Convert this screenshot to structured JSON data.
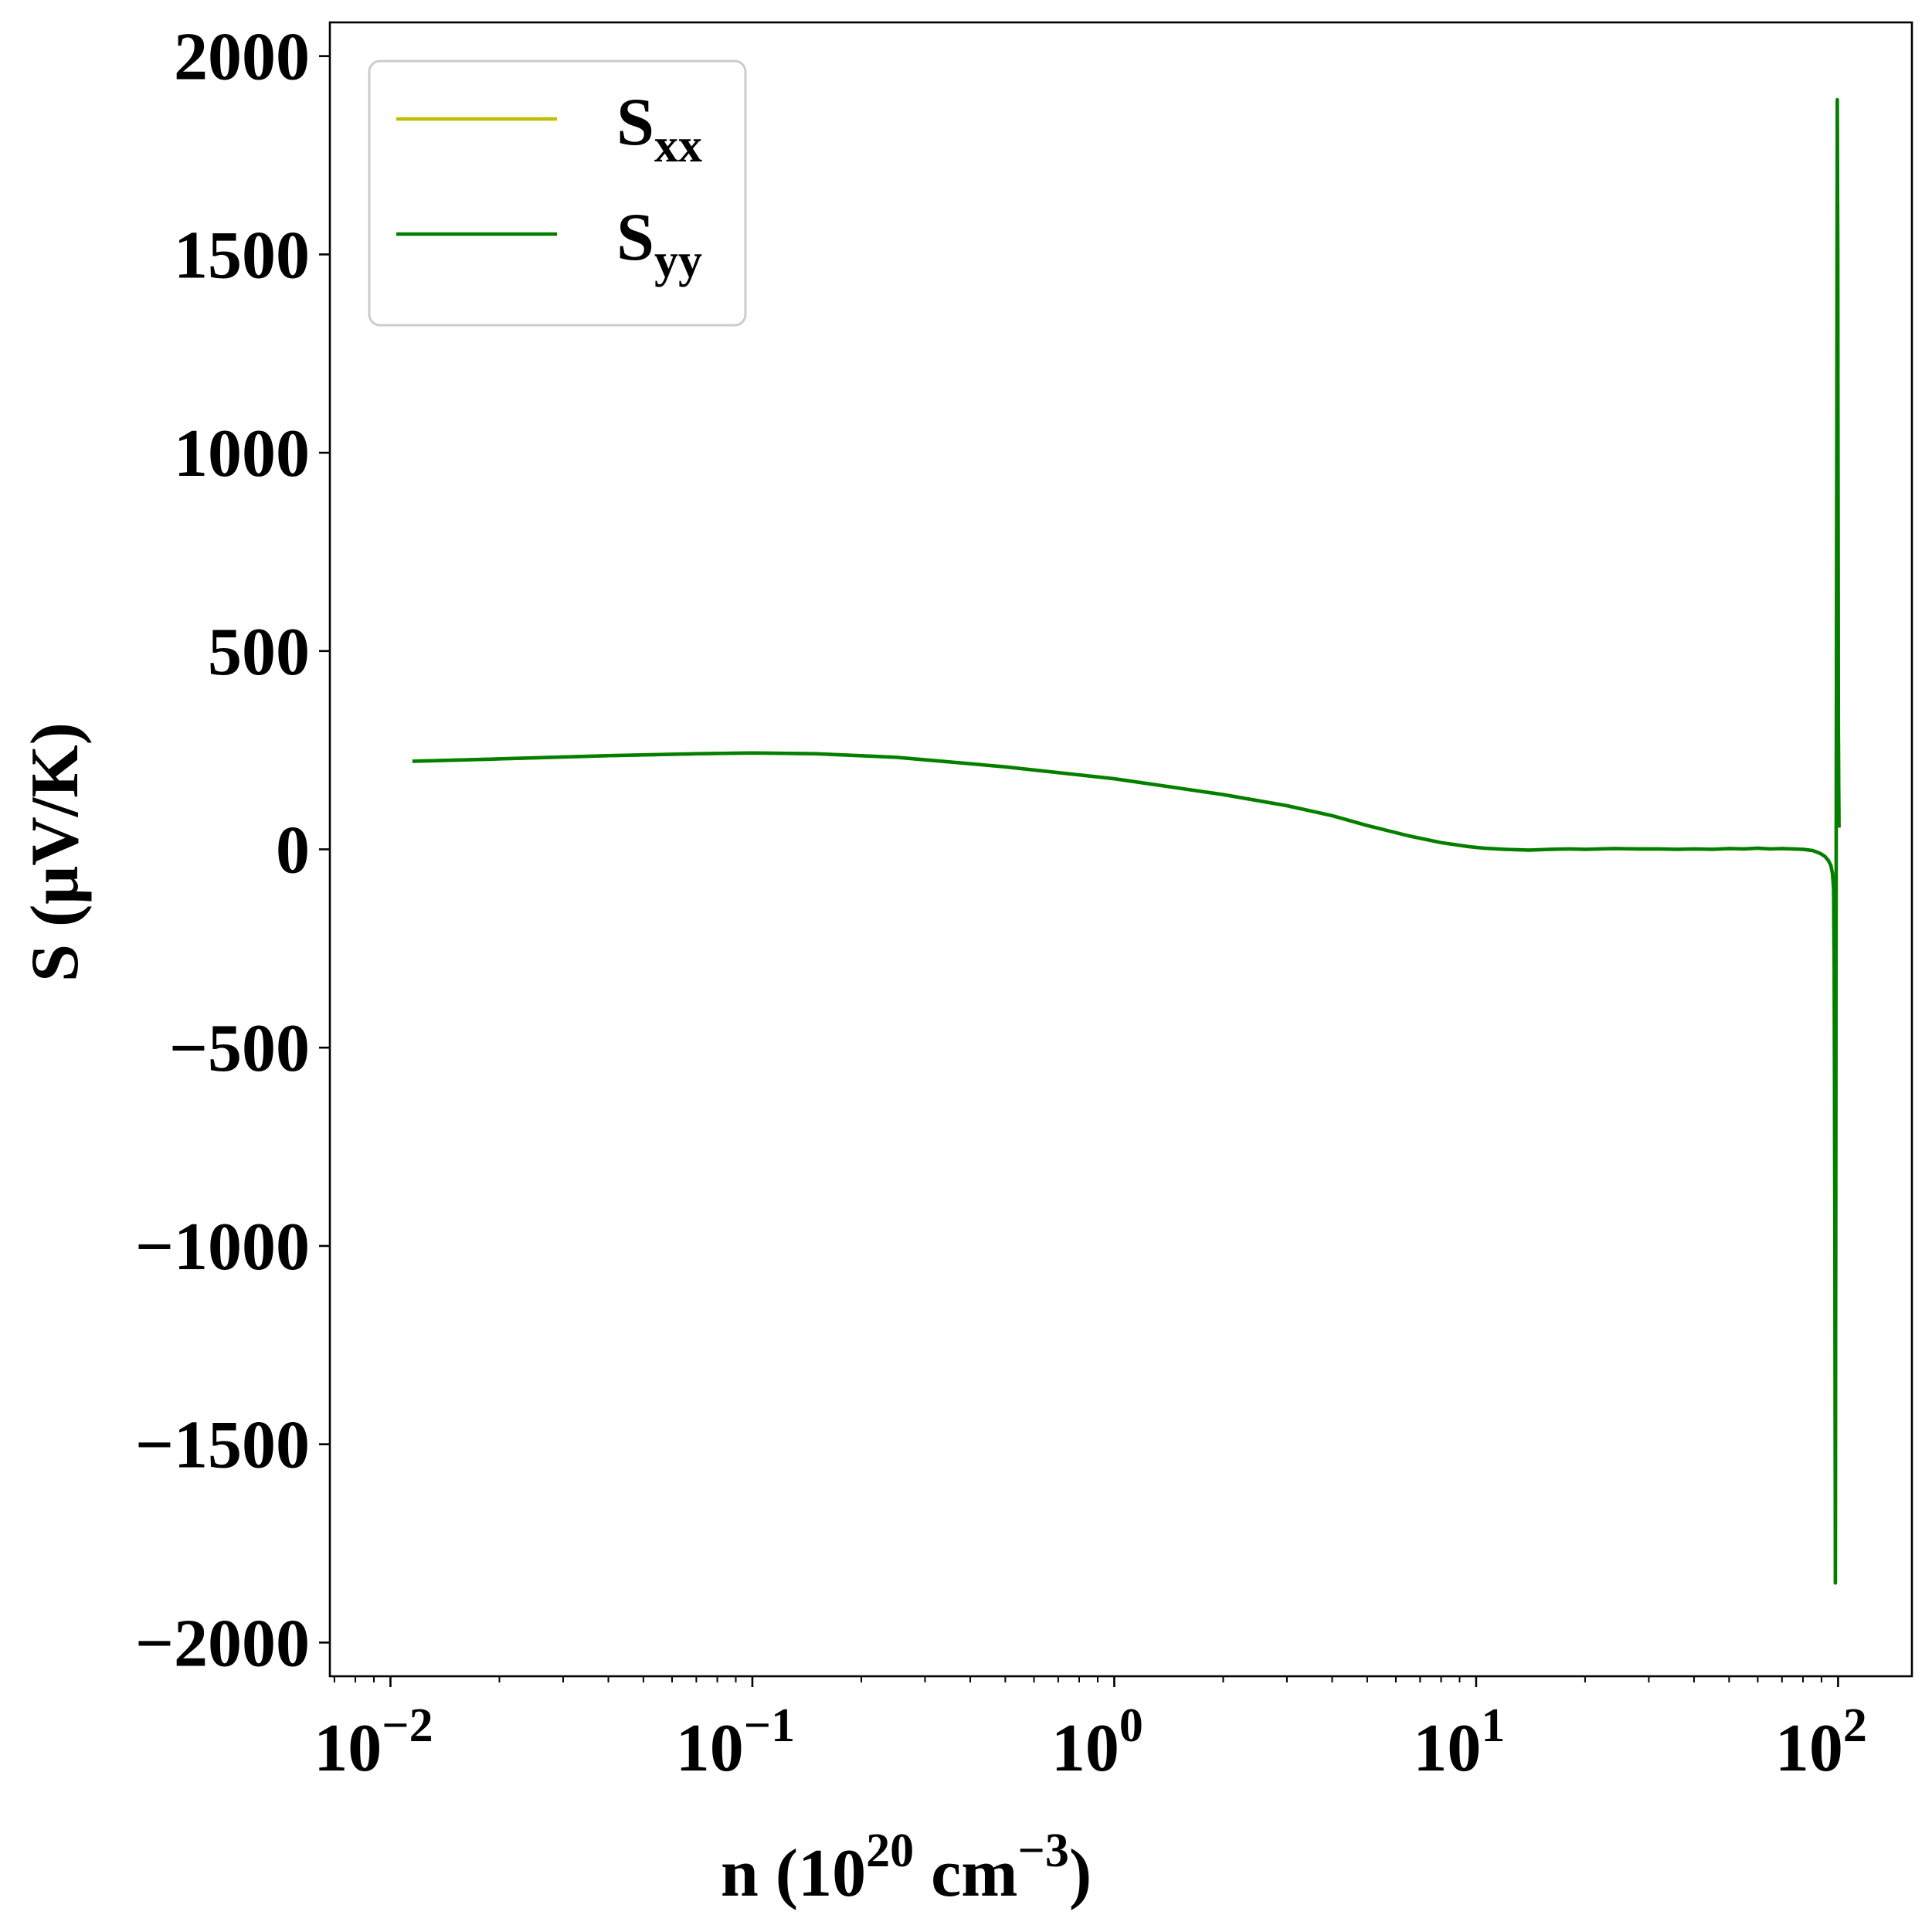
{
  "chart_data": {
    "type": "line",
    "xscale": "log",
    "xlim": [
      0.0068,
      160
    ],
    "ylim": [
      -2085,
      2085
    ],
    "xticks": [
      {
        "value": 0.01,
        "base": "10",
        "exp": "−2"
      },
      {
        "value": 0.1,
        "base": "10",
        "exp": "−1"
      },
      {
        "value": 1,
        "base": "10",
        "exp": "0"
      },
      {
        "value": 10,
        "base": "10",
        "exp": "1"
      },
      {
        "value": 100,
        "base": "10",
        "exp": "2"
      }
    ],
    "yticks": [
      {
        "value": 2000,
        "label": "2000"
      },
      {
        "value": 1500,
        "label": "1500"
      },
      {
        "value": 1000,
        "label": "1000"
      },
      {
        "value": 500,
        "label": "500"
      },
      {
        "value": 0,
        "label": "0"
      },
      {
        "value": -500,
        "label": "−500"
      },
      {
        "value": -1000,
        "label": "−1000"
      },
      {
        "value": -1500,
        "label": "−1500"
      },
      {
        "value": -2000,
        "label": "−2000"
      }
    ],
    "xlabel": {
      "pre": "n (10",
      "sup1": "20",
      "mid": " cm",
      "sup2": "−3",
      "post": ")"
    },
    "ylabel": "S (μV/K)",
    "grid": false,
    "legend_position": "upper-left",
    "series": [
      {
        "name": "S",
        "name_sub": "xx",
        "color": "#bfbf00",
        "x": [
          0.0115,
          0.02,
          0.04,
          0.07,
          0.1,
          0.15,
          0.25,
          0.5,
          1.0,
          2.0,
          3.0,
          4.0,
          5.0,
          6.5,
          8.0,
          9.5,
          10.5,
          12,
          14,
          16,
          18,
          20,
          24,
          28,
          32,
          36,
          40,
          45,
          50,
          55,
          60,
          65,
          70,
          75,
          80,
          85,
          88,
          90,
          92,
          94,
          95.5,
          96.5,
          97.2,
          97.6,
          98.0,
          98.3,
          98.6,
          98.9,
          99.2,
          99.5,
          99.8,
          100.2,
          100.6
        ],
        "y": [
          222,
          228,
          236,
          241,
          243,
          241,
          232,
          208,
          178,
          138,
          110,
          85,
          60,
          34,
          17,
          7,
          3,
          0,
          -2,
          0,
          1,
          0,
          2,
          1,
          1,
          0,
          1,
          0,
          2,
          1,
          3,
          1,
          2,
          1,
          0,
          -3,
          -8,
          -12,
          -18,
          -28,
          -40,
          -60,
          -100,
          -300,
          -1000,
          -1850,
          -800,
          200,
          1000,
          1890,
          1500,
          300,
          55
        ]
      },
      {
        "name": "S",
        "name_sub": "yy",
        "color": "#007f00",
        "x": [
          0.0115,
          0.02,
          0.04,
          0.07,
          0.1,
          0.15,
          0.25,
          0.5,
          1.0,
          2.0,
          3.0,
          4.0,
          5.0,
          6.5,
          8.0,
          9.5,
          10.5,
          12,
          14,
          16,
          18,
          20,
          24,
          28,
          32,
          36,
          40,
          45,
          50,
          55,
          60,
          65,
          70,
          75,
          80,
          85,
          88,
          90,
          92,
          94,
          95.5,
          96.5,
          97.2,
          97.6,
          98.0,
          98.3,
          98.6,
          98.9,
          99.2,
          99.5,
          99.8,
          100.2,
          100.6
        ],
        "y": [
          222,
          228,
          236,
          241,
          243,
          241,
          232,
          208,
          178,
          138,
          110,
          85,
          60,
          34,
          17,
          7,
          3,
          0,
          -2,
          0,
          1,
          0,
          2,
          1,
          1,
          0,
          1,
          0,
          2,
          1,
          3,
          1,
          2,
          1,
          0,
          -3,
          -8,
          -12,
          -18,
          -28,
          -40,
          -60,
          -100,
          -300,
          -1000,
          -1850,
          -800,
          200,
          1000,
          1890,
          1500,
          300,
          55
        ]
      }
    ]
  }
}
